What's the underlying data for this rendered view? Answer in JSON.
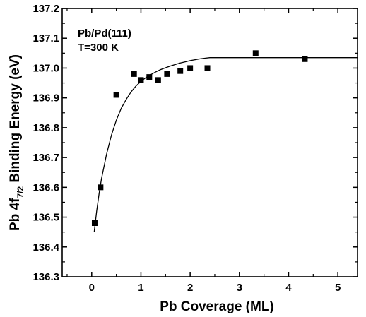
{
  "chart_data": {
    "type": "scatter",
    "xlabel": "Pb Coverage (ML)",
    "ylabel_parts": {
      "main": "Pb 4f",
      "sub": "7/2",
      "rest": " Binding Energy (eV)"
    },
    "xlim": [
      -0.6,
      5.4
    ],
    "ylim": [
      136.3,
      137.2
    ],
    "x_ticks": [
      0,
      1,
      2,
      3,
      4,
      5
    ],
    "y_ticks": [
      136.3,
      136.4,
      136.5,
      136.6,
      136.7,
      136.8,
      136.9,
      137.0,
      137.1,
      137.2
    ],
    "annotations": [
      "Pb/Pd(111)",
      "T=300 K"
    ],
    "grid": false,
    "series": [
      {
        "type": "scatter",
        "marker": "square",
        "x": [
          0.06,
          0.18,
          0.5,
          0.86,
          1.0,
          1.17,
          1.35,
          1.53,
          1.8,
          2.0,
          2.35,
          3.33,
          4.33
        ],
        "y": [
          136.48,
          136.6,
          136.91,
          136.98,
          136.96,
          136.97,
          136.96,
          136.98,
          136.99,
          137.0,
          137.0,
          137.05,
          137.03
        ]
      },
      {
        "type": "line",
        "x": [
          0.05,
          0.1,
          0.15,
          0.2,
          0.3,
          0.4,
          0.5,
          0.6,
          0.7,
          0.8,
          0.9,
          1.0,
          1.1,
          1.2,
          1.3,
          1.4,
          1.5,
          1.6,
          1.7,
          1.8,
          1.9,
          2.0,
          2.1,
          2.2,
          2.3,
          2.4,
          2.5,
          3.0,
          4.0,
          5.4
        ],
        "y": [
          136.45,
          136.52,
          136.58,
          136.63,
          136.71,
          136.775,
          136.825,
          136.865,
          136.895,
          136.92,
          136.94,
          136.955,
          136.968,
          136.978,
          136.987,
          136.995,
          137.001,
          137.007,
          137.012,
          137.017,
          137.021,
          137.025,
          137.028,
          137.031,
          137.033,
          137.035,
          137.035,
          137.035,
          137.035,
          137.035
        ]
      }
    ]
  }
}
